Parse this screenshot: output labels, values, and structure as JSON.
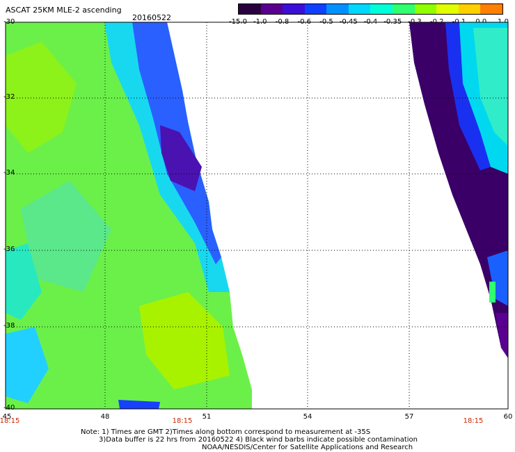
{
  "title": "ASCAT 25KM MLE-2 ascending",
  "date": "20160522",
  "colorbar": {
    "ticks": [
      "-15.0",
      "-1.0",
      "-0.8",
      "-0.6",
      "-0.5",
      "-0.45",
      "-0.4",
      "-0.35",
      "-0.3",
      "-0.2",
      "-0.1",
      "0.0",
      "1.0"
    ],
    "colors": [
      "#2a0040",
      "#5a0090",
      "#3a10d8",
      "#1040ff",
      "#0090ff",
      "#00d8ff",
      "#00ffd8",
      "#30ff70",
      "#90ff00",
      "#e0ff00",
      "#ffd000",
      "#ff8000",
      "#ff2000"
    ]
  },
  "lat_labels": [
    "-30",
    "-32",
    "-34",
    "-36",
    "-38",
    "-40"
  ],
  "lon_labels": [
    "45",
    "48",
    "51",
    "54",
    "57",
    "60"
  ],
  "time_labels": [
    "18:15",
    "18:15",
    "18:15"
  ],
  "notes": {
    "line1": "Note: 1) Times are GMT 2)Times along bottom correspond to measurement at -35S",
    "line2": "3)Data buffer is 22 hrs from 20160522 4) Black wind barbs indicate possible contamination",
    "line3": "NOAA/NESDIS/Center for Satellite Applications and Research"
  }
}
